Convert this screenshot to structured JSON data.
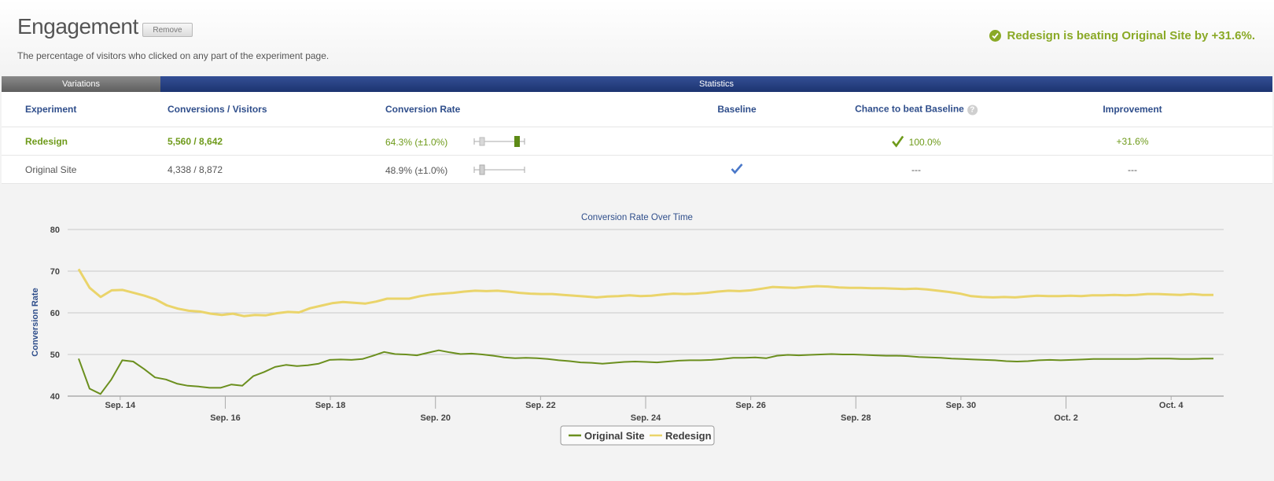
{
  "header": {
    "title": "Engagement",
    "remove_label": "Remove",
    "subtitle": "The percentage of visitors who clicked on any part of the experiment page.",
    "result_text": "Redesign is beating Original Site by +31.6%."
  },
  "table": {
    "group_headers": {
      "variations": "Variations",
      "statistics": "Statistics"
    },
    "columns": {
      "experiment": "Experiment",
      "conversions": "Conversions / Visitors",
      "rate": "Conversion Rate",
      "baseline": "Baseline",
      "chance": "Chance to beat Baseline",
      "improvement": "Improvement"
    },
    "rows": [
      {
        "name": "Redesign",
        "conversions": "5,560 / 8,642",
        "rate": "64.3% (±1.0%)",
        "baseline": "",
        "chance": "100.0%",
        "improvement": "+31.6%"
      },
      {
        "name": "Original Site",
        "conversions": "4,338 / 8,872",
        "rate": "48.9% (±1.0%)",
        "baseline": "baseline-check",
        "chance": "---",
        "improvement": "---"
      }
    ]
  },
  "colors": {
    "accent_green": "#8aa926",
    "green_text": "#6e9a1a",
    "navy": "#2f4e8b",
    "redesign_line": "#ead46a",
    "original_line": "#6b8f1e"
  },
  "chart_data": {
    "type": "line",
    "title": "Conversion Rate Over Time",
    "ylabel": "Conversion Rate",
    "xlabel": "",
    "ylim": [
      40,
      80
    ],
    "yticks": [
      40,
      50,
      60,
      70,
      80
    ],
    "x_start": "Sep. 13",
    "x_end": "Oct. 5",
    "xticks_upper": [
      "Sep. 14",
      "Sep. 18",
      "Sep. 22",
      "Sep. 26",
      "Sep. 30",
      "Oct. 4"
    ],
    "xticks_lower": [
      "Sep. 16",
      "Sep. 20",
      "Sep. 24",
      "Sep. 28",
      "Oct. 2"
    ],
    "xtick_dates": [
      "Sep. 14",
      "Sep. 16",
      "Sep. 18",
      "Sep. 20",
      "Sep. 22",
      "Sep. 24",
      "Sep. 26",
      "Sep. 28",
      "Sep. 30",
      "Oct. 2",
      "Oct. 4"
    ],
    "legend_position": "bottom-center",
    "grid": true,
    "series": [
      {
        "name": "Original Site",
        "values": [
          49,
          41.8,
          40.5,
          44,
          48.6,
          48.3,
          46.5,
          44.5,
          44,
          43,
          42.5,
          42.3,
          42,
          42,
          42.8,
          42.5,
          44.8,
          45.8,
          47,
          47.5,
          47.2,
          47.4,
          47.8,
          48.7,
          48.8,
          48.7,
          48.9,
          49.7,
          50.6,
          50.1,
          50,
          49.8,
          50.4,
          51,
          50.5,
          50.1,
          50.2,
          50,
          49.7,
          49.3,
          49.1,
          49.2,
          49.1,
          48.9,
          48.6,
          48.4,
          48.1,
          48,
          47.8,
          48,
          48.2,
          48.3,
          48.2,
          48.1,
          48.3,
          48.5,
          48.6,
          48.6,
          48.7,
          48.9,
          49.2,
          49.2,
          49.3,
          49.1,
          49.7,
          49.9,
          49.8,
          49.9,
          50,
          50.1,
          50,
          50,
          49.9,
          49.8,
          49.7,
          49.7,
          49.6,
          49.4,
          49.3,
          49.2,
          49,
          48.9,
          48.8,
          48.7,
          48.6,
          48.4,
          48.3,
          48.4,
          48.6,
          48.7,
          48.6,
          48.7,
          48.8,
          48.9,
          48.9,
          48.9,
          48.9,
          48.9,
          49,
          49,
          49,
          48.9,
          48.9,
          49,
          49
        ],
        "color": "#6b8f1e"
      },
      {
        "name": "Redesign",
        "values": [
          70.5,
          66,
          63.8,
          65.4,
          65.5,
          64.8,
          64.1,
          63.2,
          61.8,
          61,
          60.5,
          60.3,
          59.8,
          59.5,
          59.8,
          59.2,
          59.5,
          59.4,
          59.9,
          60.2,
          60.1,
          61.1,
          61.7,
          62.3,
          62.6,
          62.4,
          62.2,
          62.7,
          63.4,
          63.4,
          63.4,
          64,
          64.4,
          64.6,
          64.8,
          65.1,
          65.3,
          65.2,
          65.3,
          65.1,
          64.8,
          64.6,
          64.5,
          64.5,
          64.3,
          64.1,
          63.9,
          63.7,
          63.9,
          64,
          64.2,
          64,
          64.1,
          64.4,
          64.6,
          64.5,
          64.6,
          64.8,
          65.1,
          65.3,
          65.2,
          65.4,
          65.8,
          66.2,
          66.1,
          66,
          66.2,
          66.4,
          66.3,
          66.1,
          66,
          66,
          65.9,
          65.9,
          65.8,
          65.7,
          65.8,
          65.6,
          65.3,
          65,
          64.6,
          64,
          63.8,
          63.7,
          63.8,
          63.7,
          63.9,
          64.1,
          64,
          64,
          64.1,
          64,
          64.2,
          64.2,
          64.3,
          64.2,
          64.3,
          64.5,
          64.5,
          64.4,
          64.3,
          64.5,
          64.3,
          64.3
        ],
        "color": "#ead46a"
      }
    ]
  }
}
